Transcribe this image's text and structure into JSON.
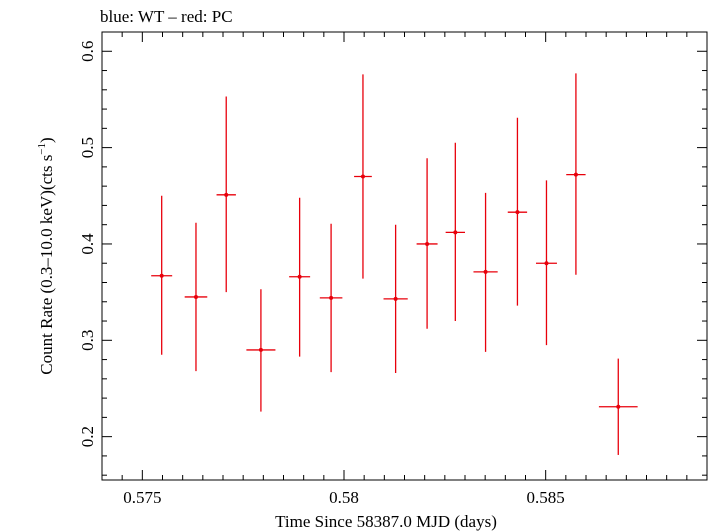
{
  "chart_data": {
    "type": "scatter",
    "title": "blue: WT – red: PC",
    "xlabel": "Time Since 58387.0 MJD (days)",
    "ylabel_main": "Count Rate (0.3–10.0 keV)(cts s",
    "ylabel_sup": "−1",
    "ylabel_close": ")",
    "xlim": [
      0.574,
      0.589
    ],
    "ylim": [
      0.155,
      0.62
    ],
    "xticks": [
      {
        "value": 0.575,
        "label": "0.575"
      },
      {
        "value": 0.58,
        "label": "0.58"
      },
      {
        "value": 0.585,
        "label": "0.585"
      }
    ],
    "yticks": [
      {
        "value": 0.2,
        "label": "0.2"
      },
      {
        "value": 0.3,
        "label": "0.3"
      },
      {
        "value": 0.4,
        "label": "0.4"
      },
      {
        "value": 0.5,
        "label": "0.5"
      },
      {
        "value": 0.6,
        "label": "0.6"
      }
    ],
    "series": [
      {
        "color": "#e8000b",
        "points": [
          {
            "x": 0.57548,
            "xerr": 0.00026,
            "y": 0.367,
            "ylo": 0.285,
            "yhi": 0.45
          },
          {
            "x": 0.57633,
            "xerr": 0.00028,
            "y": 0.345,
            "ylo": 0.268,
            "yhi": 0.422
          },
          {
            "x": 0.57708,
            "xerr": 0.00024,
            "y": 0.451,
            "ylo": 0.35,
            "yhi": 0.553
          },
          {
            "x": 0.57794,
            "xerr": 0.00036,
            "y": 0.29,
            "ylo": 0.226,
            "yhi": 0.353
          },
          {
            "x": 0.5789,
            "xerr": 0.00026,
            "y": 0.366,
            "ylo": 0.283,
            "yhi": 0.448
          },
          {
            "x": 0.57968,
            "xerr": 0.00028,
            "y": 0.344,
            "ylo": 0.267,
            "yhi": 0.421
          },
          {
            "x": 0.58047,
            "xerr": 0.00022,
            "y": 0.47,
            "ylo": 0.364,
            "yhi": 0.576
          },
          {
            "x": 0.58128,
            "xerr": 0.0003,
            "y": 0.343,
            "ylo": 0.266,
            "yhi": 0.42
          },
          {
            "x": 0.58206,
            "xerr": 0.00026,
            "y": 0.4,
            "ylo": 0.312,
            "yhi": 0.489
          },
          {
            "x": 0.58276,
            "xerr": 0.00024,
            "y": 0.412,
            "ylo": 0.32,
            "yhi": 0.505
          },
          {
            "x": 0.58351,
            "xerr": 0.0003,
            "y": 0.371,
            "ylo": 0.288,
            "yhi": 0.453
          },
          {
            "x": 0.5843,
            "xerr": 0.00024,
            "y": 0.433,
            "ylo": 0.336,
            "yhi": 0.531
          },
          {
            "x": 0.58502,
            "xerr": 0.00026,
            "y": 0.38,
            "ylo": 0.295,
            "yhi": 0.466
          },
          {
            "x": 0.58575,
            "xerr": 0.00024,
            "y": 0.472,
            "ylo": 0.368,
            "yhi": 0.577
          },
          {
            "x": 0.5868,
            "xerr": 0.00048,
            "y": 0.231,
            "ylo": 0.181,
            "yhi": 0.281
          }
        ]
      }
    ],
    "grid": false,
    "legend": "none"
  }
}
